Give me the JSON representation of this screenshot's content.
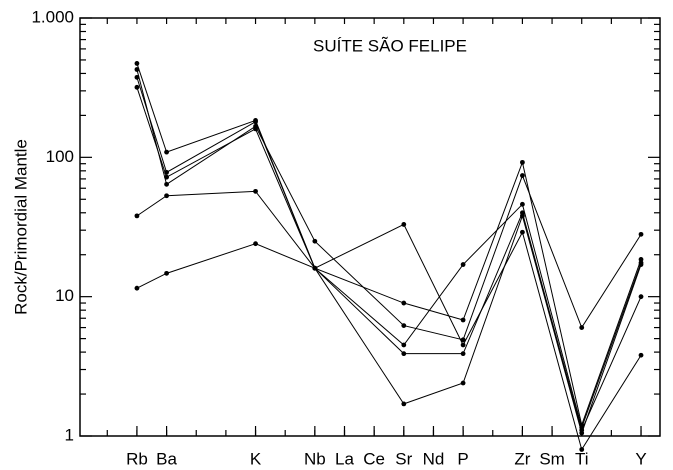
{
  "chart_data": {
    "type": "line",
    "ylabel": "Rock/Primordial Mantle",
    "annotation": "SUÍTE SÃO FELIPE",
    "x": [
      0,
      1,
      4,
      6,
      9,
      11,
      13,
      15,
      17
    ],
    "xlim": [
      -1.92,
      17.64
    ],
    "xticks": [
      {
        "value": 0,
        "label": "Rb"
      },
      {
        "value": 1,
        "label": "Ba"
      },
      {
        "value": 4,
        "label": "K"
      },
      {
        "value": 6,
        "label": "Nb"
      },
      {
        "value": 7,
        "label": "La"
      },
      {
        "value": 8,
        "label": "Ce"
      },
      {
        "value": 9,
        "label": "Sr"
      },
      {
        "value": 10,
        "label": "Nd"
      },
      {
        "value": 11,
        "label": "P"
      },
      {
        "value": 13,
        "label": "Zr"
      },
      {
        "value": 14,
        "label": "Sm"
      },
      {
        "value": 15,
        "label": "Ti"
      },
      {
        "value": 17,
        "label": "Y"
      }
    ],
    "ylim": [
      1,
      1000
    ],
    "yscale": "log",
    "yticks": [
      1,
      10,
      100,
      {
        "value": 1000,
        "label": "1.000"
      }
    ],
    "color": "#000000",
    "series": [
      {
        "values": [
          472,
          109,
          184,
          16,
          9,
          6.8,
          92,
          1.2,
          18.5
        ]
      },
      {
        "values": [
          427,
          64,
          167,
          25,
          6.2,
          4.9,
          74,
          6,
          28
        ]
      },
      {
        "values": [
          375,
          78,
          180,
          16,
          4.5,
          17,
          46,
          1.15,
          17.5
        ]
      },
      {
        "values": [
          318,
          72,
          160,
          16,
          3.9,
          3.9,
          40,
          1.1,
          10
        ]
      },
      {
        "values": [
          38,
          53,
          57,
          16,
          1.7,
          2.4,
          38,
          1.05,
          17
        ]
      },
      {
        "values": [
          11.5,
          14.7,
          24,
          16,
          33,
          4.5,
          29,
          0.8,
          3.8
        ]
      }
    ]
  }
}
